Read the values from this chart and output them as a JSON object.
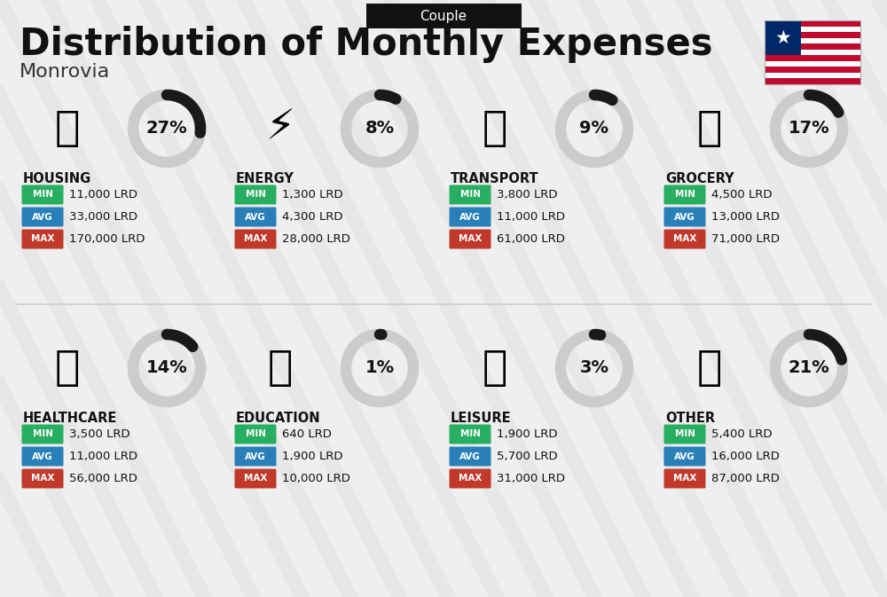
{
  "title": "Distribution of Monthly Expenses",
  "subtitle": "Monrovia",
  "label_top": "Couple",
  "background_color": "#efefef",
  "categories": [
    {
      "name": "HOUSING",
      "pct": 27,
      "min_val": "11,000 LRD",
      "avg_val": "33,000 LRD",
      "max_val": "170,000 LRD",
      "row": 0,
      "col": 0
    },
    {
      "name": "ENERGY",
      "pct": 8,
      "min_val": "1,300 LRD",
      "avg_val": "4,300 LRD",
      "max_val": "28,000 LRD",
      "row": 0,
      "col": 1
    },
    {
      "name": "TRANSPORT",
      "pct": 9,
      "min_val": "3,800 LRD",
      "avg_val": "11,000 LRD",
      "max_val": "61,000 LRD",
      "row": 0,
      "col": 2
    },
    {
      "name": "GROCERY",
      "pct": 17,
      "min_val": "4,500 LRD",
      "avg_val": "13,000 LRD",
      "max_val": "71,000 LRD",
      "row": 0,
      "col": 3
    },
    {
      "name": "HEALTHCARE",
      "pct": 14,
      "min_val": "3,500 LRD",
      "avg_val": "11,000 LRD",
      "max_val": "56,000 LRD",
      "row": 1,
      "col": 0
    },
    {
      "name": "EDUCATION",
      "pct": 1,
      "min_val": "640 LRD",
      "avg_val": "1,900 LRD",
      "max_val": "10,000 LRD",
      "row": 1,
      "col": 1
    },
    {
      "name": "LEISURE",
      "pct": 3,
      "min_val": "1,900 LRD",
      "avg_val": "5,700 LRD",
      "max_val": "31,000 LRD",
      "row": 1,
      "col": 2
    },
    {
      "name": "OTHER",
      "pct": 21,
      "min_val": "5,400 LRD",
      "avg_val": "16,000 LRD",
      "max_val": "87,000 LRD",
      "row": 1,
      "col": 3
    }
  ],
  "min_color": "#27ae60",
  "avg_color": "#2980b9",
  "max_color": "#c0392b",
  "stripe_color": "#e0e0e0",
  "ring_bg_color": "#cccccc",
  "ring_fill_color": "#1a1a1a",
  "divider_color": "#cccccc"
}
